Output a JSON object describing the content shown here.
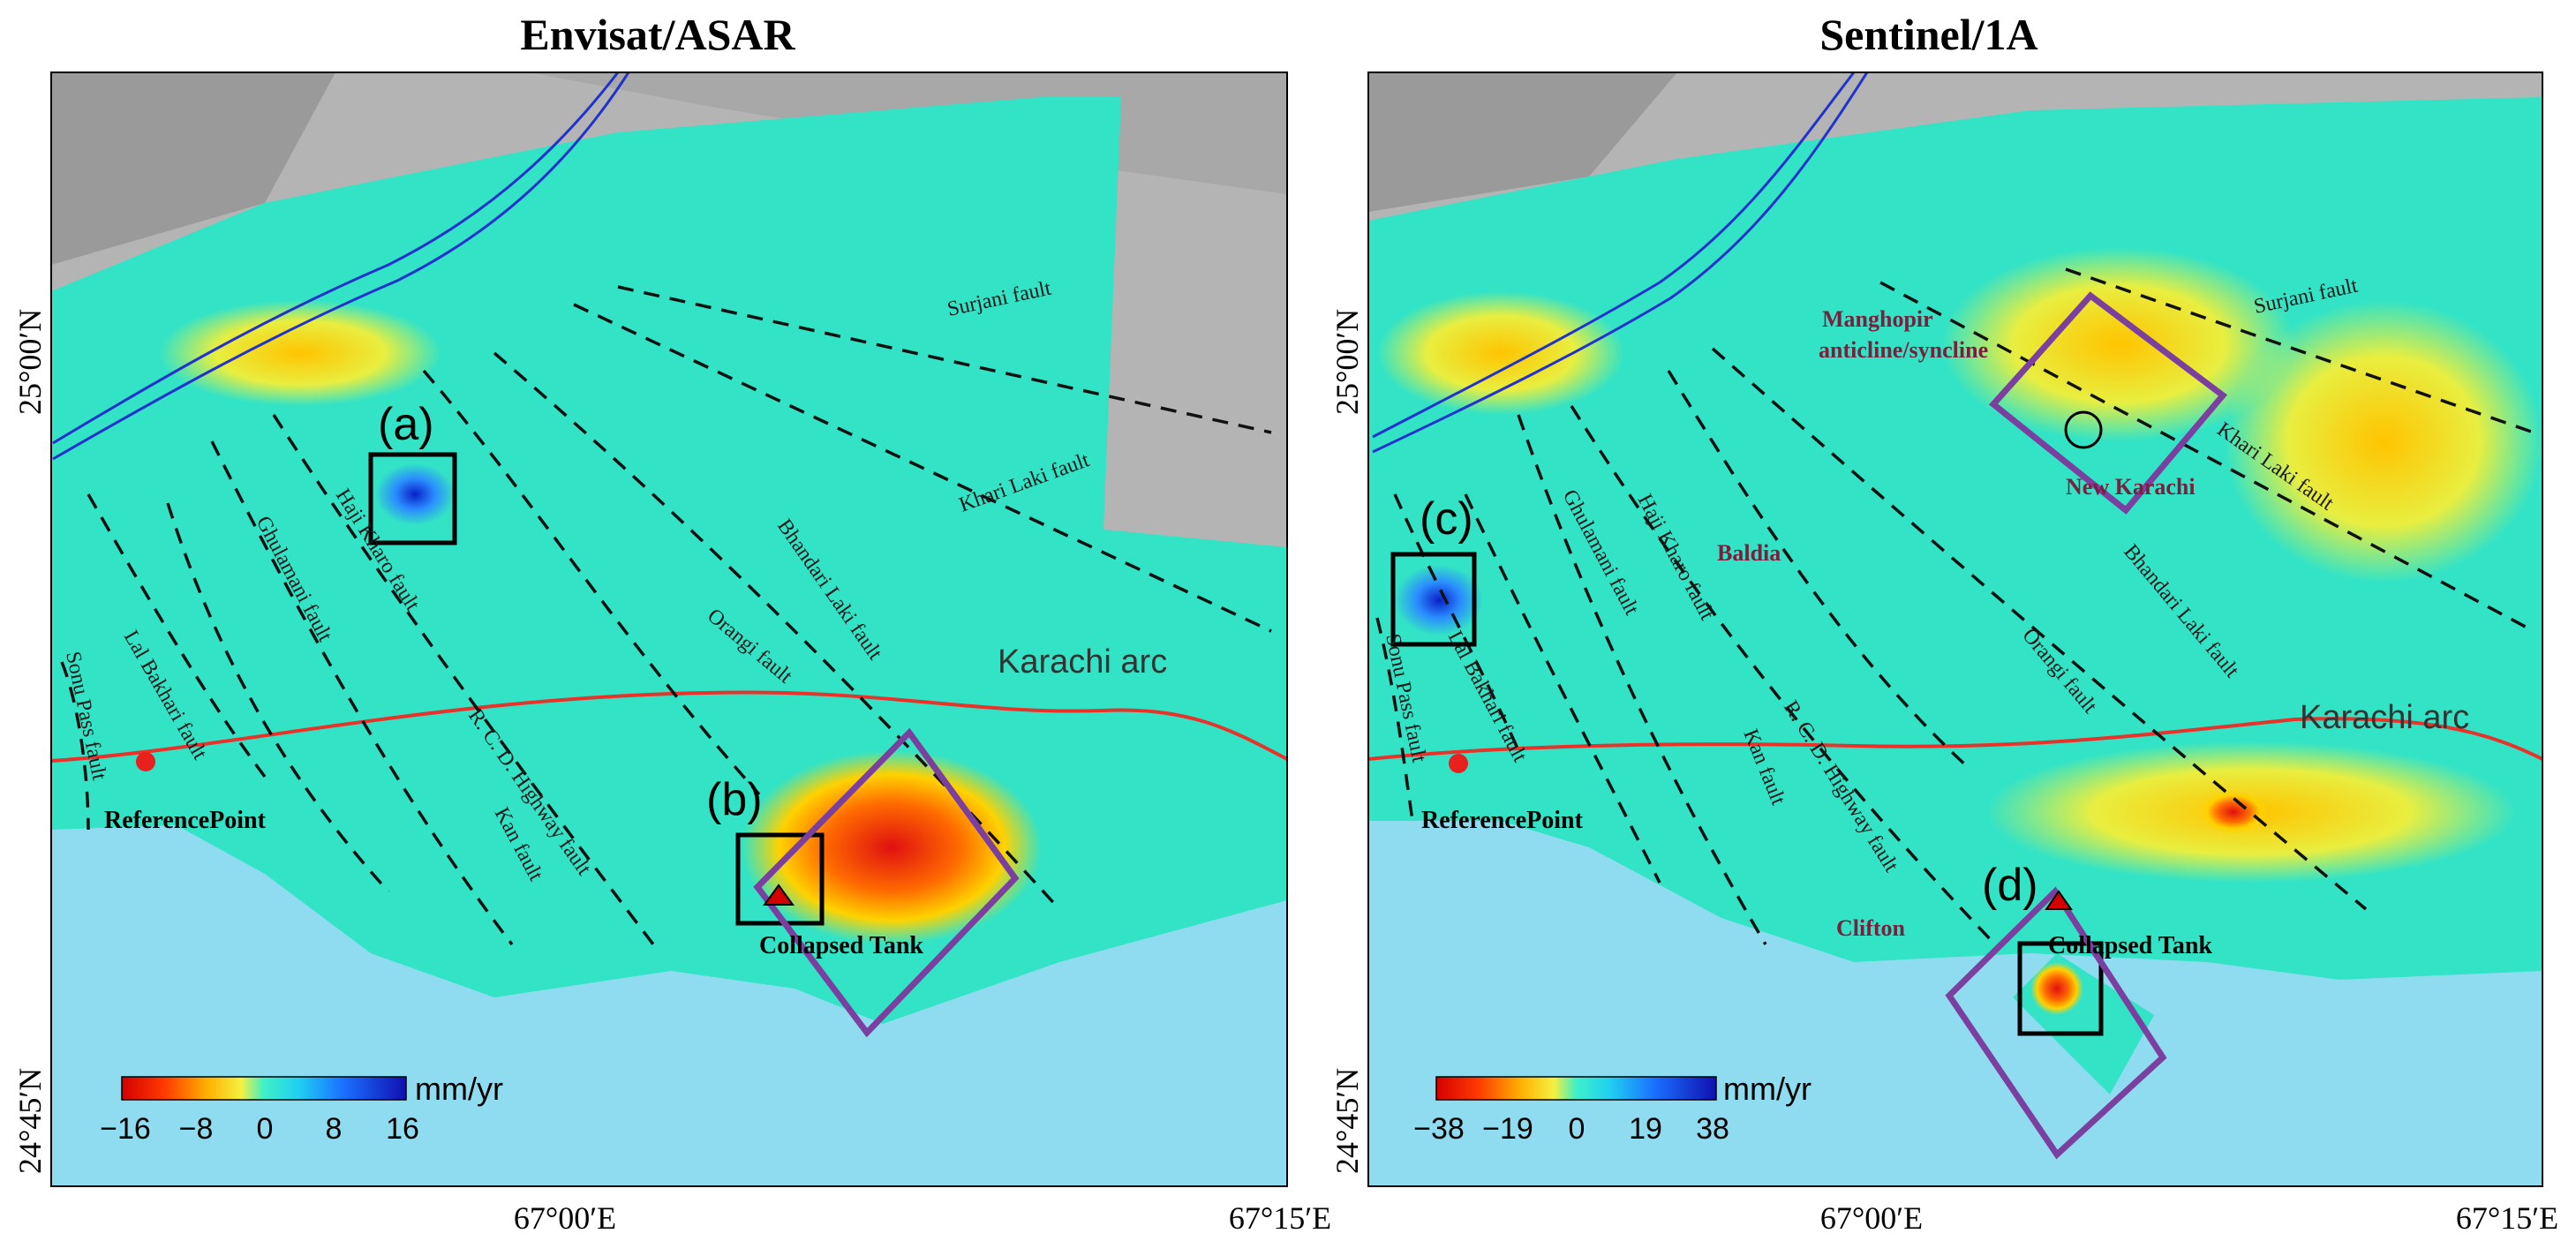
{
  "panels": [
    {
      "title": "Envisat/ASAR",
      "lat_labels": [
        "25°00′N",
        "24°45′N"
      ],
      "lon_labels": [
        "67°00′E",
        "67°15′E"
      ],
      "faults": [
        "Surjani fault",
        "Khari Laki fault",
        "Bhandari Laki fault",
        "Orangi fault",
        "Haji Kharo fault",
        "Ghulamani fault",
        "Lal Bakhari fault",
        "Sonu Pass fault",
        "R. C. D. Highway fault",
        "Kan fault"
      ],
      "arc_label": "Karachi arc",
      "reference_point": "ReferencePoint",
      "collapsed_tank": "Collapsed Tank",
      "box_labels": [
        "(a)",
        "(b)"
      ],
      "colorbar": {
        "unit": "mm/yr",
        "ticks": [
          "−16",
          "−8",
          "0",
          "8",
          "16"
        ]
      }
    },
    {
      "title": "Sentinel/1A",
      "lat_labels": [
        "25°00′N",
        "24°45′N"
      ],
      "lon_labels": [
        "67°00′E",
        "67°15′E"
      ],
      "faults": [
        "Surjani fault",
        "Khari Laki fault",
        "Bhandari Laki fault",
        "Orangi fault",
        "Haji Kharo fault",
        "Ghulamani fault",
        "Lal Bakhari fault",
        "Sonu Pass fault",
        "R. C. D. Highway fault",
        "Kan fault"
      ],
      "places": [
        "Manghopir",
        "anticline/syncline",
        "New Karachi",
        "Baldia",
        "Clifton"
      ],
      "arc_label": "Karachi arc",
      "reference_point": "ReferencePoint",
      "collapsed_tank": "Collapsed Tank",
      "box_labels": [
        "(c)",
        "(d)"
      ],
      "colorbar": {
        "unit": "mm/yr",
        "ticks": [
          "−38",
          "−19",
          "0",
          "19",
          "38"
        ]
      }
    }
  ],
  "colors": {
    "sea": "#8fdcf0",
    "deformation_mid": "#2fe0c0",
    "road": "#e8322a",
    "river": "#2233cc",
    "box_purple": "#7b3fa0",
    "reference_point": "#e8201e"
  }
}
